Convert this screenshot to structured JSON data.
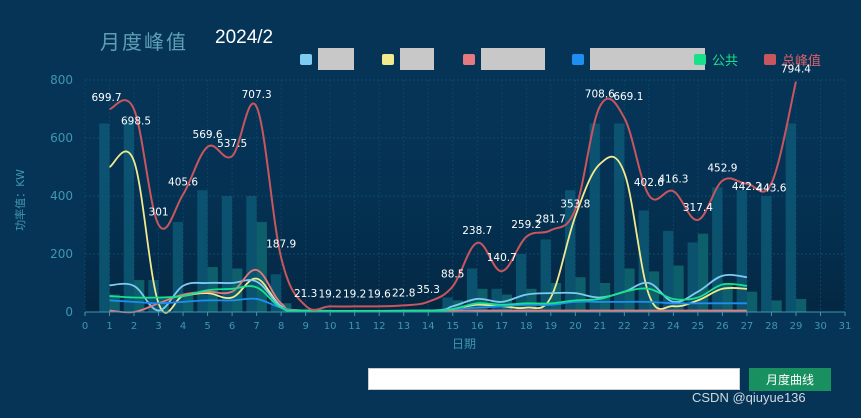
{
  "header": {
    "title": "月度峰值",
    "month": "2024/2"
  },
  "legend": [
    {
      "label": "",
      "color": "#7ecbf1"
    },
    {
      "label": "",
      "color": "#f3e98d"
    },
    {
      "label": "",
      "color": "#e4797f"
    },
    {
      "label": "",
      "color": "#1f8ef1"
    },
    {
      "label": "公共",
      "color": "#17e28b"
    },
    {
      "label": "总峰值",
      "color": "#c8565e"
    }
  ],
  "controls": {
    "input_value": "",
    "button_label": "月度曲线"
  },
  "watermark": "CSDN @qiuyue136",
  "chart_data": {
    "type": "line",
    "xlabel": "日期",
    "ylabel": "功率值：KW",
    "xlim": [
      0,
      31
    ],
    "ylim": [
      0,
      800
    ],
    "x_ticks": [
      0,
      1,
      2,
      3,
      4,
      5,
      6,
      7,
      8,
      9,
      10,
      11,
      12,
      13,
      14,
      15,
      16,
      17,
      18,
      19,
      20,
      21,
      22,
      23,
      24,
      25,
      26,
      27,
      28,
      29,
      30,
      31
    ],
    "y_ticks": [
      0,
      200,
      400,
      600,
      800
    ],
    "series": [
      {
        "name": "总峰值",
        "color": "#c8565e",
        "x": [
          1,
          2,
          3,
          4,
          5,
          6,
          7,
          8,
          9,
          10,
          11,
          12,
          13,
          14,
          15,
          16,
          17,
          18,
          19,
          20,
          21,
          22,
          23,
          24,
          25,
          26,
          27,
          28,
          29
        ],
        "values": [
          699.7,
          698.5,
          301,
          405.6,
          569.6,
          537.5,
          707.3,
          187.9,
          21.3,
          19.2,
          19.2,
          19.6,
          22.8,
          35.3,
          88.5,
          238.7,
          140.7,
          259.2,
          281.7,
          353.8,
          708.6,
          669.1,
          402.6,
          416.3,
          317.4,
          452.9,
          442.2,
          443.6,
          794.4
        ]
      },
      {
        "name": "",
        "color": "#f3e98d",
        "x": [
          1,
          2,
          3,
          4,
          5,
          6,
          7,
          8,
          9,
          14,
          15,
          16,
          17,
          18,
          19,
          20,
          21,
          22,
          23,
          24,
          25,
          26,
          27
        ],
        "values": [
          500,
          520,
          30,
          55,
          65,
          50,
          115,
          20,
          5,
          5,
          10,
          25,
          20,
          15,
          50,
          330,
          510,
          480,
          60,
          20,
          40,
          80,
          80
        ]
      },
      {
        "name": "",
        "color": "#7ecbf1",
        "x": [
          1,
          2,
          3,
          4,
          5,
          6,
          7,
          8,
          9,
          14,
          15,
          16,
          17,
          18,
          19,
          20,
          21,
          22,
          23,
          24,
          25,
          26,
          27
        ],
        "values": [
          92,
          90,
          5,
          90,
          100,
          100,
          105,
          20,
          5,
          5,
          20,
          45,
          35,
          60,
          65,
          65,
          50,
          70,
          100,
          35,
          70,
          125,
          120
        ]
      },
      {
        "name": "",
        "color": "#e4797f",
        "x": [
          1,
          2,
          3,
          4,
          5,
          6,
          7,
          8,
          9,
          14,
          15,
          16,
          17,
          18,
          19,
          20,
          21,
          22,
          23,
          24,
          25,
          26,
          27
        ],
        "values": [
          5,
          0,
          30,
          60,
          70,
          70,
          145,
          30,
          5,
          3,
          5,
          5,
          5,
          5,
          5,
          5,
          5,
          5,
          5,
          5,
          5,
          5,
          5
        ]
      },
      {
        "name": "",
        "color": "#1f8ef1",
        "x": [
          1,
          2,
          3,
          4,
          5,
          6,
          7,
          8,
          9,
          14,
          15,
          16,
          17,
          18,
          19,
          20,
          21,
          22,
          23,
          24,
          25,
          26,
          27
        ],
        "values": [
          40,
          35,
          30,
          35,
          40,
          40,
          45,
          15,
          5,
          5,
          10,
          15,
          20,
          25,
          25,
          35,
          35,
          35,
          35,
          30,
          30,
          30,
          30
        ]
      },
      {
        "name": "公共",
        "color": "#17e28b",
        "x": [
          1,
          2,
          3,
          4,
          5,
          6,
          7,
          8,
          9,
          14,
          15,
          16,
          17,
          18,
          19,
          20,
          21,
          22,
          23,
          24,
          25,
          26,
          27
        ],
        "values": [
          55,
          50,
          50,
          55,
          75,
          80,
          85,
          15,
          5,
          5,
          10,
          30,
          25,
          30,
          30,
          40,
          45,
          70,
          80,
          45,
          50,
          95,
          90
        ]
      }
    ],
    "bars": {
      "color_a": "#0c5673",
      "color_b": "#0e6570",
      "a": [
        650,
        660,
        110,
        310,
        420,
        400,
        400,
        130,
        5,
        5,
        5,
        5,
        5,
        5,
        50,
        150,
        80,
        200,
        250,
        420,
        650,
        650,
        350,
        280,
        240,
        430,
        420,
        400,
        650
      ],
      "b": [
        60,
        110,
        50,
        60,
        155,
        150,
        310,
        30,
        5,
        5,
        5,
        5,
        5,
        5,
        40,
        80,
        60,
        80,
        100,
        120,
        100,
        150,
        140,
        160,
        270,
        100,
        70,
        40,
        45
      ]
    }
  }
}
